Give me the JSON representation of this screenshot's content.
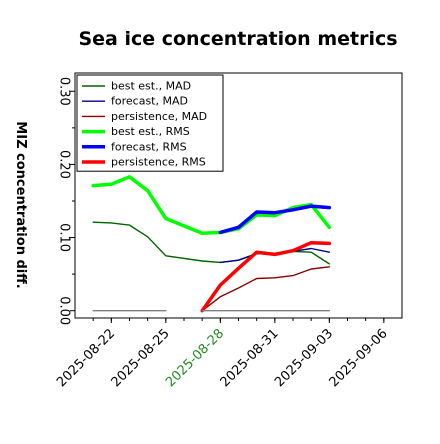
{
  "chart_data": {
    "type": "line",
    "title": "Sea ice concentration metrics",
    "ylabel": "MIZ concentration diff.",
    "xlabel": "",
    "ylim": [
      -0.01,
      0.325
    ],
    "xlim": [
      "2025-08-20",
      "2025-09-07"
    ],
    "y_ticks": [
      0.0,
      0.1,
      0.2,
      0.3
    ],
    "y_tick_labels": [
      "0.00",
      "0.10",
      "0.20",
      "0.30"
    ],
    "x_ticks": [
      "2025-08-22",
      "2025-08-25",
      "2025-08-28",
      "2025-08-31",
      "2025-09-03",
      "2025-09-06"
    ],
    "x_tick_labels": [
      "2025-08-22",
      "2025-08-25",
      "2025-08-28",
      "2025-08-31",
      "2025-09-03",
      "2025-09-06"
    ],
    "highlighted_x_tick": "2025-08-28",
    "highlight_color": "#228b22",
    "legend_position": "upper-left",
    "legend": [
      {
        "label": "best est., MAD",
        "color": "#006400",
        "weight": "thin"
      },
      {
        "label": "forecast,  MAD",
        "color": "#00008b",
        "weight": "thin"
      },
      {
        "label": "persistence, MAD",
        "color": "#8b0000",
        "weight": "thin"
      },
      {
        "label": "best est., RMS",
        "color": "#00ff00",
        "weight": "thick"
      },
      {
        "label": "forecast,  RMS",
        "color": "#0000ff",
        "weight": "thick"
      },
      {
        "label": "persistence, RMS",
        "color": "#ff0000",
        "weight": "thick"
      }
    ],
    "series": [
      {
        "name": "best est., MAD",
        "color": "#006400",
        "weight": "thin",
        "x": [
          "2025-08-21",
          "2025-08-22",
          "2025-08-23",
          "2025-08-24",
          "2025-08-25",
          "2025-08-27",
          "2025-08-28",
          "2025-08-29",
          "2025-08-30",
          "2025-08-31",
          "2025-09-01",
          "2025-09-02",
          "2025-09-03"
        ],
        "y": [
          0.121,
          0.12,
          0.117,
          0.101,
          0.075,
          0.068,
          0.066,
          0.069,
          0.078,
          0.077,
          0.081,
          0.08,
          0.064
        ]
      },
      {
        "name": "forecast,  MAD",
        "color": "#00008b",
        "weight": "thin",
        "x": [
          "2025-08-28",
          "2025-08-29",
          "2025-08-30",
          "2025-08-31",
          "2025-09-01",
          "2025-09-02",
          "2025-09-03"
        ],
        "y": [
          0.066,
          0.069,
          0.078,
          0.077,
          0.081,
          0.085,
          0.08
        ]
      },
      {
        "name": "persistence, MAD",
        "color": "#8b0000",
        "weight": "thin",
        "x": [
          "2025-08-27",
          "2025-08-28",
          "2025-08-29",
          "2025-08-30",
          "2025-08-31",
          "2025-09-01",
          "2025-09-02",
          "2025-09-03"
        ],
        "y": [
          0.0,
          0.019,
          0.031,
          0.044,
          0.045,
          0.048,
          0.057,
          0.06
        ]
      },
      {
        "name": "best est., RMS",
        "color": "#00ff00",
        "weight": "thick",
        "x": [
          "2025-08-21",
          "2025-08-22",
          "2025-08-23",
          "2025-08-24",
          "2025-08-25",
          "2025-08-27",
          "2025-08-28",
          "2025-08-29",
          "2025-08-30",
          "2025-08-31",
          "2025-09-01",
          "2025-09-02",
          "2025-09-03"
        ],
        "y": [
          0.171,
          0.173,
          0.183,
          0.164,
          0.126,
          0.106,
          0.107,
          0.112,
          0.131,
          0.13,
          0.141,
          0.145,
          0.114
        ]
      },
      {
        "name": "forecast,  RMS",
        "color": "#0000ff",
        "weight": "thick",
        "x": [
          "2025-08-28",
          "2025-08-29",
          "2025-08-30",
          "2025-08-31",
          "2025-09-01",
          "2025-09-02",
          "2025-09-03"
        ],
        "y": [
          0.107,
          0.114,
          0.135,
          0.134,
          0.138,
          0.143,
          0.141
        ]
      },
      {
        "name": "persistence, RMS",
        "color": "#ff0000",
        "weight": "thick",
        "x": [
          "2025-08-27",
          "2025-08-28",
          "2025-08-29",
          "2025-08-30",
          "2025-08-31",
          "2025-09-01",
          "2025-09-02",
          "2025-09-03"
        ],
        "y": [
          0.0,
          0.035,
          0.058,
          0.08,
          0.077,
          0.082,
          0.093,
          0.092
        ]
      },
      {
        "name": "",
        "color": "#808080",
        "weight": "thin",
        "x": [
          "2025-08-21",
          "2025-08-25"
        ],
        "y": [
          0.0,
          0.0
        ]
      },
      {
        "name": "",
        "color": "#808080",
        "weight": "thin",
        "x": [
          "2025-08-27",
          "2025-09-03"
        ],
        "y": [
          0.0,
          0.0
        ]
      }
    ]
  }
}
